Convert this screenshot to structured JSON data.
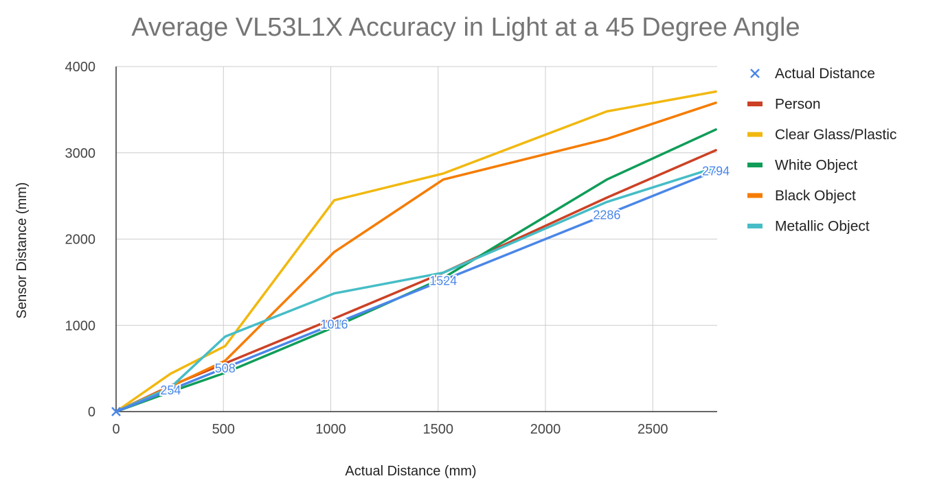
{
  "chart_data": {
    "type": "line",
    "title": "Average VL53L1X Accuracy in Light at a 45 Degree Angle",
    "xlabel": "Actual Distance (mm)",
    "ylabel": "Sensor Distance (mm)",
    "xlim": [
      0,
      2800
    ],
    "ylim": [
      0,
      4000
    ],
    "xticks": [
      0,
      500,
      1000,
      1500,
      2000,
      2500
    ],
    "yticks": [
      0,
      1000,
      2000,
      3000,
      4000
    ],
    "xtick_labels": [
      "0",
      "500",
      "1000",
      "1500",
      "2000",
      "2500"
    ],
    "ytick_labels": [
      "0",
      "1000",
      "2000",
      "3000",
      "4000"
    ],
    "grid": true,
    "legend_position": "right",
    "x": [
      0,
      254,
      508,
      1016,
      1524,
      2286,
      2794
    ],
    "series": [
      {
        "name": "Actual Distance",
        "color": "#4a86e8",
        "marker": "x",
        "values": [
          0,
          254,
          508,
          1016,
          1524,
          2286,
          2794
        ],
        "data_labels": [
          "254",
          "508",
          "1016",
          "1524",
          "2286",
          "2794"
        ]
      },
      {
        "name": "Person",
        "color": "#cc4125",
        "values": [
          0,
          300,
          560,
          1080,
          1610,
          2480,
          3030
        ]
      },
      {
        "name": "Clear Glass/Plastic",
        "color": "#f1b80f",
        "values": [
          0,
          440,
          760,
          2450,
          2760,
          3480,
          3710
        ]
      },
      {
        "name": "White Object",
        "color": "#0f9d58",
        "values": [
          0,
          230,
          450,
          980,
          1550,
          2690,
          3270
        ]
      },
      {
        "name": "Black Object",
        "color": "#f57c00",
        "values": [
          0,
          290,
          590,
          1850,
          2690,
          3160,
          3580
        ]
      },
      {
        "name": "Metallic Object",
        "color": "#46bdc6",
        "values": [
          0,
          280,
          870,
          1370,
          1610,
          2430,
          2830
        ]
      }
    ]
  }
}
